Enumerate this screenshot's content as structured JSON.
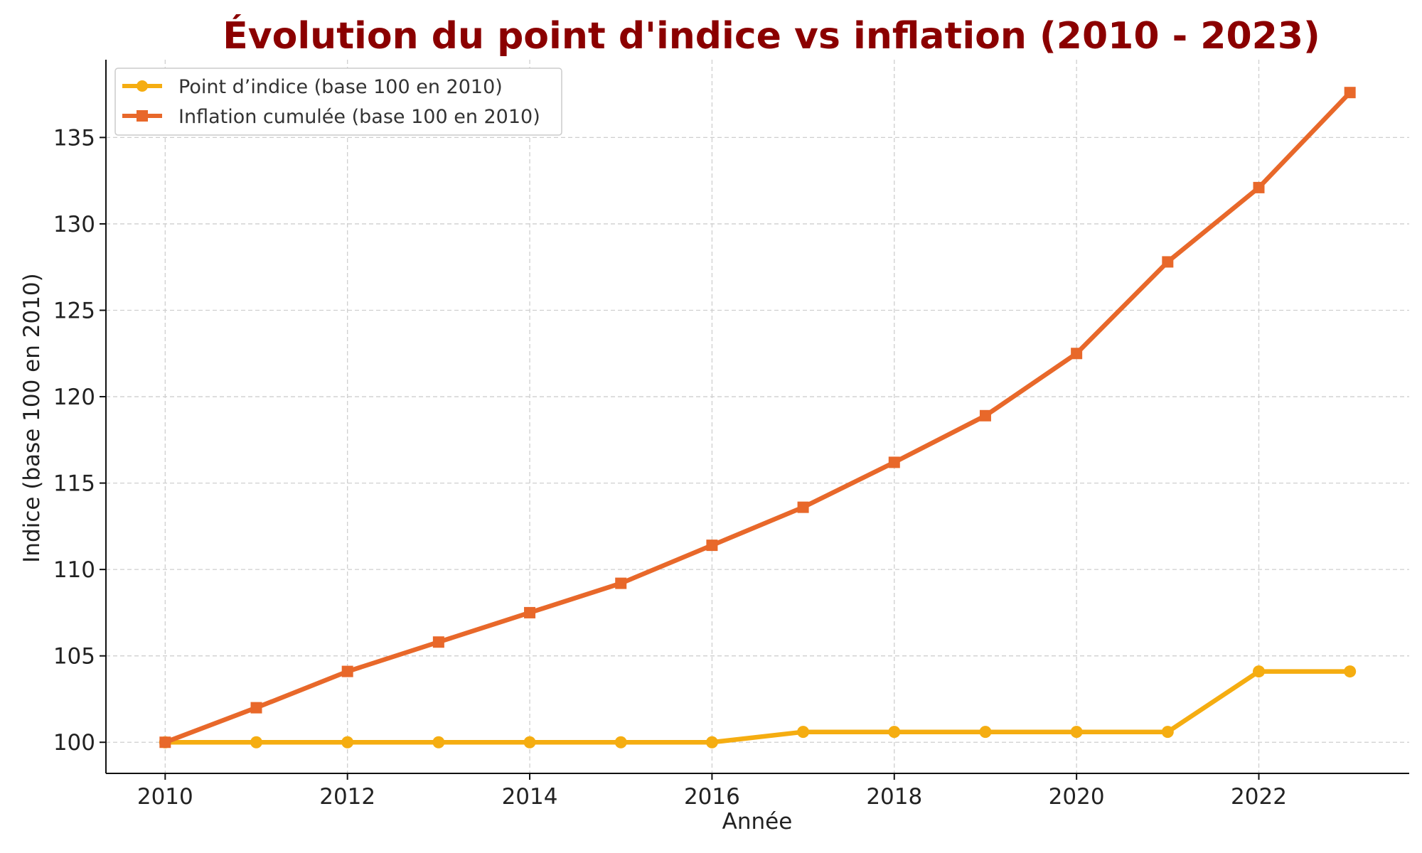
{
  "chart_data": {
    "type": "line",
    "title": "Évolution du point d'indice vs inflation (2010 - 2023)",
    "xlabel": "Année",
    "ylabel": "Indice (base 100 en 2010)",
    "x": [
      2010,
      2011,
      2012,
      2013,
      2014,
      2015,
      2016,
      2017,
      2018,
      2019,
      2020,
      2021,
      2022,
      2023
    ],
    "xticks": [
      2010,
      2012,
      2014,
      2016,
      2018,
      2020,
      2022
    ],
    "yticks": [
      100,
      105,
      110,
      115,
      120,
      125,
      130,
      135
    ],
    "xlim": [
      2009.35,
      2023.65
    ],
    "ylim": [
      98.2,
      139.5
    ],
    "grid": true,
    "legend_position": "top-left",
    "series": [
      {
        "name": "Point d’indice (base 100 en 2010)",
        "color": "#f5ad11",
        "marker": "circle",
        "values": [
          100.0,
          100.0,
          100.0,
          100.0,
          100.0,
          100.0,
          100.0,
          100.6,
          100.6,
          100.6,
          100.6,
          100.6,
          104.1,
          104.1
        ]
      },
      {
        "name": "Inflation cumulée (base 100 en 2010)",
        "color": "#e8682a",
        "marker": "square",
        "values": [
          100.0,
          102.0,
          104.1,
          105.8,
          107.5,
          109.2,
          111.4,
          113.6,
          116.2,
          118.9,
          122.5,
          127.8,
          132.1,
          137.6
        ]
      }
    ]
  }
}
